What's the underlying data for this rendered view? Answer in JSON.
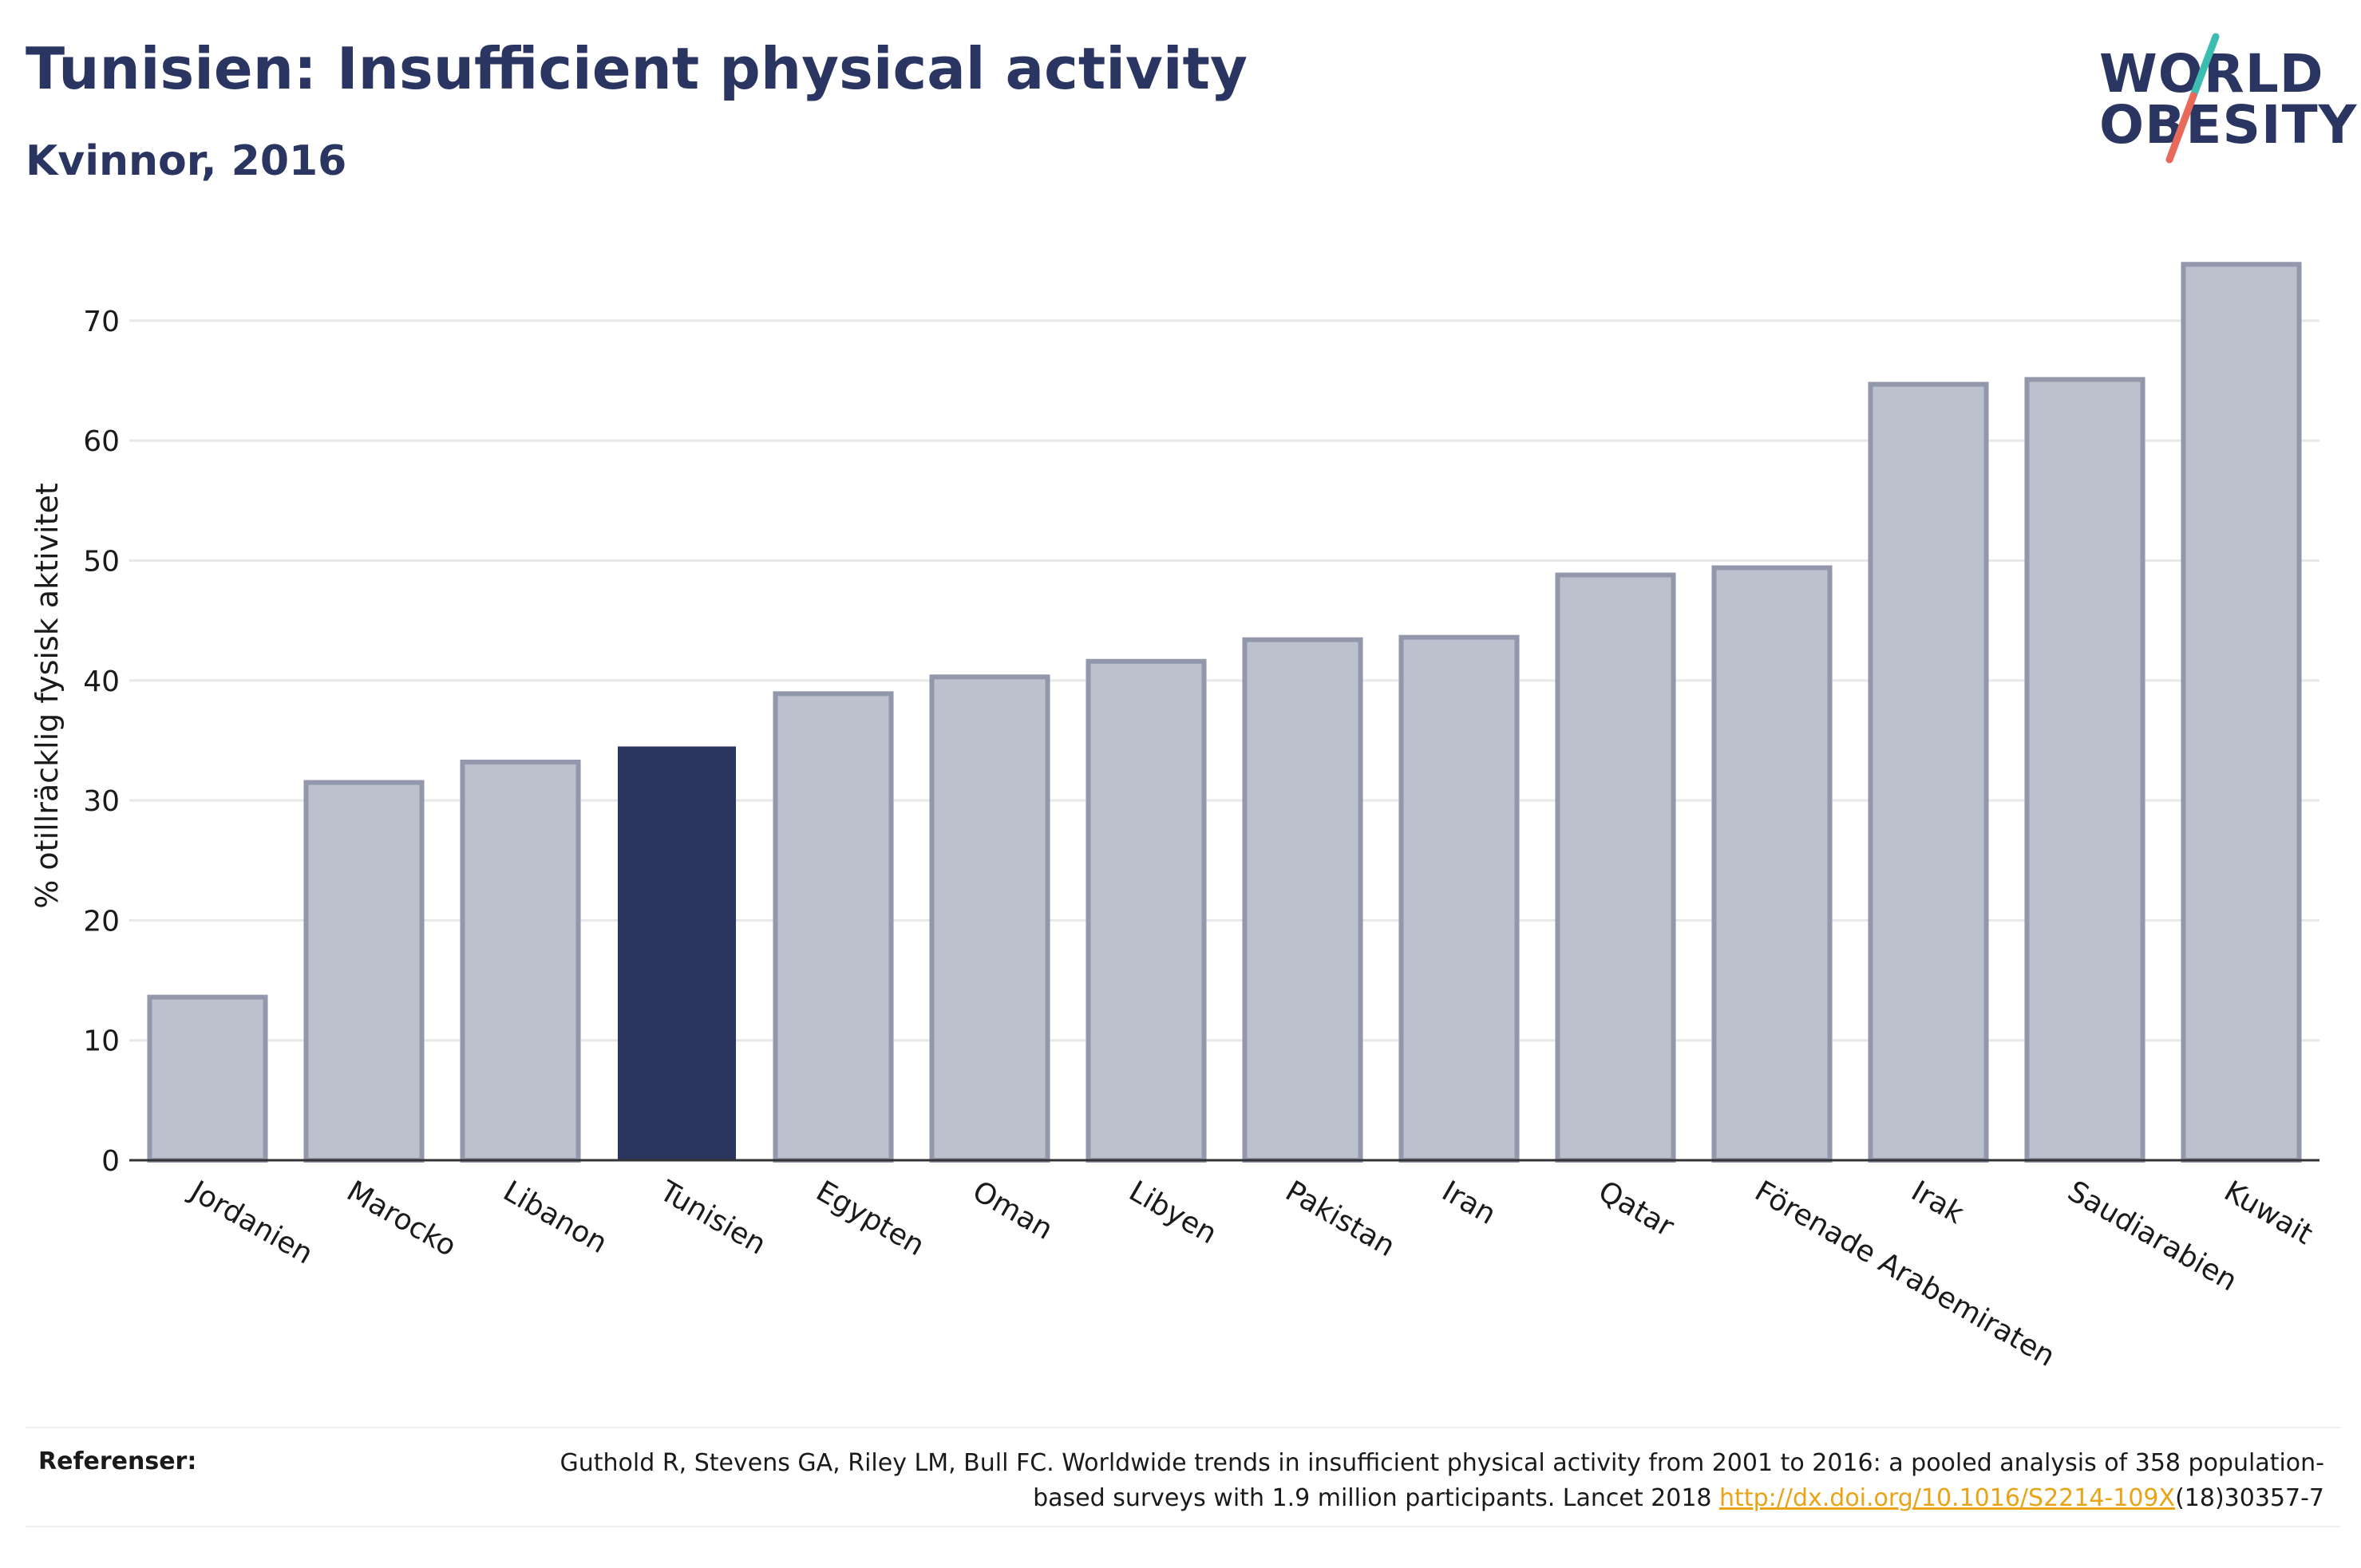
{
  "header": {
    "title": "Tunisien: Insufficient physical activity",
    "subtitle": "Kvinnor, 2016"
  },
  "logo": {
    "line1": "WORLD",
    "line2": "OBESITY",
    "slash_colors": [
      "#3dbdb2",
      "#e8685a"
    ],
    "text_color": "#2b3562"
  },
  "colors": {
    "highlight_bar": "#2a3560",
    "other_bar_fill": "#bdc1cd",
    "other_bar_stroke": "#9297ab",
    "grid": "#e8e8e8",
    "axis": "#333333"
  },
  "chart_data": {
    "type": "bar",
    "title": "Tunisien: Insufficient physical activity",
    "subtitle": "Kvinnor, 2016",
    "xlabel": "",
    "ylabel": "% otillräcklig fysisk aktivitet",
    "categories": [
      "Jordanien",
      "Marocko",
      "Libanon",
      "Tunisien",
      "Egypten",
      "Oman",
      "Libyen",
      "Pakistan",
      "Iran",
      "Qatar",
      "Förenade Arabemiraten",
      "Irak",
      "Saudiarabien",
      "Kuwait"
    ],
    "values": [
      13.6,
      31.5,
      33.2,
      34.4,
      38.9,
      40.3,
      41.6,
      43.4,
      43.6,
      48.8,
      49.4,
      64.7,
      65.1,
      74.7
    ],
    "highlight": "Tunisien",
    "ylim": [
      0,
      76
    ],
    "yticks": [
      0,
      10,
      20,
      30,
      40,
      50,
      60,
      70
    ],
    "grid": true,
    "legend": "none"
  },
  "references": {
    "label": "Referenser:",
    "text_before": "Guthold R, Stevens GA, Riley LM, Bull FC. Worldwide trends in insufficient physical activity from 2001 to 2016: a pooled analysis of 358 population-based surveys with 1.9 million participants. Lancet 2018 ",
    "link_text": "http://dx.doi.org/10.1016/S2214-109X",
    "text_after": "(18)30357-7"
  }
}
